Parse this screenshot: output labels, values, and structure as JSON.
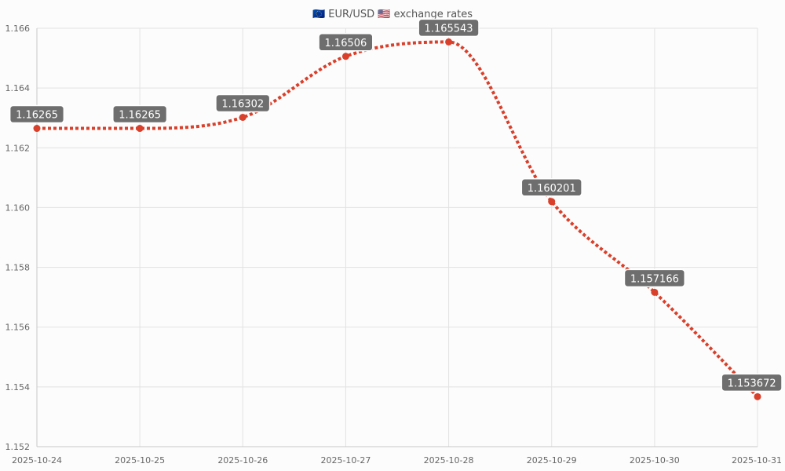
{
  "chart_data": {
    "type": "line",
    "title": "🇪🇺 EUR/USD 🇺🇸 exchange rates",
    "x": [
      "2025-10-24",
      "2025-10-25",
      "2025-10-26",
      "2025-10-27",
      "2025-10-28",
      "2025-10-29",
      "2025-10-30",
      "2025-10-31"
    ],
    "series": [
      {
        "values": [
          1.16265,
          1.16265,
          1.16302,
          1.16506,
          1.165543,
          1.160201,
          1.157166,
          1.153672
        ],
        "labels": [
          "1.16265",
          "1.16265",
          "1.16302",
          "1.16506",
          "1.165543",
          "1.160201",
          "1.157166",
          "1.153672"
        ],
        "color": "#d9402b",
        "line_style": "dotted"
      }
    ],
    "ylim": [
      1.152,
      1.166
    ],
    "yticks": [
      "1.152",
      "1.154",
      "1.156",
      "1.158",
      "1.160",
      "1.162",
      "1.164",
      "1.166"
    ],
    "grid": true,
    "label_color": "#6e6e6e"
  }
}
